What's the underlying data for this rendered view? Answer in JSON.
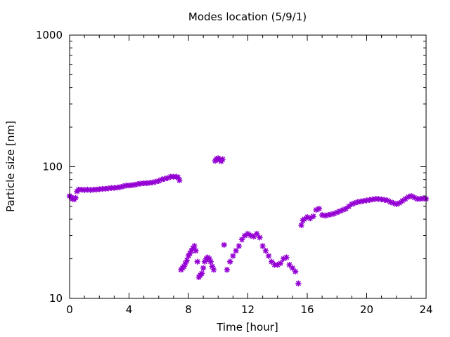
{
  "chart_data": {
    "type": "scatter",
    "title": "Modes location (5/9/1)",
    "xlabel": "Time [hour]",
    "ylabel": "Particle size [nm]",
    "xlim": [
      0,
      24
    ],
    "ylim": [
      10,
      1000
    ],
    "yscale": "log",
    "x_ticks": [
      0,
      4,
      8,
      12,
      16,
      20,
      24
    ],
    "x_tick_labels": [
      "0",
      "4",
      "8",
      "12",
      "16",
      "20",
      "24"
    ],
    "y_ticks": [
      10,
      100,
      1000
    ],
    "y_tick_labels": [
      "10",
      "100",
      "1000"
    ],
    "grid": false,
    "legend": "none",
    "marker_color": "#9400d3",
    "series": [
      {
        "points": [
          [
            0.0,
            60
          ],
          [
            0.1,
            58.5
          ],
          [
            0.2,
            57
          ],
          [
            0.3,
            56.5
          ],
          [
            0.4,
            58
          ],
          [
            0.5,
            65
          ],
          [
            0.6,
            67
          ],
          [
            0.8,
            67
          ],
          [
            1.0,
            66.5
          ],
          [
            1.2,
            67
          ],
          [
            1.4,
            66.5
          ],
          [
            1.6,
            67
          ],
          [
            1.8,
            67
          ],
          [
            2.0,
            67.5
          ],
          [
            2.2,
            68
          ],
          [
            2.4,
            68
          ],
          [
            2.6,
            68.5
          ],
          [
            2.8,
            69
          ],
          [
            3.0,
            69
          ],
          [
            3.2,
            69.5
          ],
          [
            3.4,
            70
          ],
          [
            3.6,
            71
          ],
          [
            3.8,
            72
          ],
          [
            4.0,
            72
          ],
          [
            4.2,
            72.5
          ],
          [
            4.4,
            73
          ],
          [
            4.6,
            74
          ],
          [
            4.8,
            74.5
          ],
          [
            5.0,
            75
          ],
          [
            5.2,
            75
          ],
          [
            5.4,
            75.5
          ],
          [
            5.6,
            76
          ],
          [
            5.8,
            77
          ],
          [
            6.0,
            78
          ],
          [
            6.2,
            80
          ],
          [
            6.4,
            81
          ],
          [
            6.6,
            82
          ],
          [
            6.8,
            84
          ],
          [
            7.0,
            84
          ],
          [
            7.2,
            84
          ],
          [
            7.3,
            83
          ],
          [
            7.4,
            79
          ],
          [
            7.5,
            16.5
          ],
          [
            7.6,
            17
          ],
          [
            7.7,
            17.5
          ],
          [
            7.8,
            18.5
          ],
          [
            7.9,
            19.5
          ],
          [
            8.0,
            21
          ],
          [
            8.1,
            22
          ],
          [
            8.2,
            23
          ],
          [
            8.3,
            24
          ],
          [
            8.4,
            25
          ],
          [
            8.5,
            23
          ],
          [
            8.6,
            19
          ],
          [
            8.7,
            14.5
          ],
          [
            8.8,
            15
          ],
          [
            8.9,
            15.5
          ],
          [
            9.0,
            17
          ],
          [
            9.1,
            19
          ],
          [
            9.2,
            20
          ],
          [
            9.3,
            20.5
          ],
          [
            9.4,
            20
          ],
          [
            9.5,
            19
          ],
          [
            9.6,
            17.5
          ],
          [
            9.7,
            16.5
          ],
          [
            9.8,
            111
          ],
          [
            9.9,
            115
          ],
          [
            10.0,
            116
          ],
          [
            10.1,
            113
          ],
          [
            10.2,
            110
          ],
          [
            10.3,
            114
          ],
          [
            10.4,
            25.5
          ],
          [
            10.6,
            16.5
          ],
          [
            10.8,
            19
          ],
          [
            11.0,
            21
          ],
          [
            11.2,
            23
          ],
          [
            11.4,
            25
          ],
          [
            11.6,
            28
          ],
          [
            11.8,
            30
          ],
          [
            12.0,
            31
          ],
          [
            12.2,
            30
          ],
          [
            12.4,
            29.5
          ],
          [
            12.6,
            31
          ],
          [
            12.8,
            29
          ],
          [
            13.0,
            25
          ],
          [
            13.2,
            23
          ],
          [
            13.4,
            21
          ],
          [
            13.6,
            19
          ],
          [
            13.8,
            18
          ],
          [
            14.0,
            18
          ],
          [
            14.2,
            18.5
          ],
          [
            14.4,
            20
          ],
          [
            14.6,
            20.5
          ],
          [
            14.8,
            18
          ],
          [
            15.0,
            17
          ],
          [
            15.2,
            16
          ],
          [
            15.4,
            13
          ],
          [
            15.6,
            36
          ],
          [
            15.7,
            39
          ],
          [
            15.8,
            40
          ],
          [
            16.0,
            41.5
          ],
          [
            16.2,
            40.5
          ],
          [
            16.4,
            42
          ],
          [
            16.6,
            47
          ],
          [
            16.8,
            48
          ],
          [
            17.0,
            43
          ],
          [
            17.2,
            42.5
          ],
          [
            17.4,
            43
          ],
          [
            17.6,
            43.5
          ],
          [
            17.8,
            44
          ],
          [
            18.0,
            45
          ],
          [
            18.2,
            46
          ],
          [
            18.4,
            47
          ],
          [
            18.6,
            48
          ],
          [
            18.8,
            50
          ],
          [
            19.0,
            52
          ],
          [
            19.2,
            53
          ],
          [
            19.4,
            54
          ],
          [
            19.6,
            54.5
          ],
          [
            19.8,
            55
          ],
          [
            20.0,
            55.5
          ],
          [
            20.2,
            56
          ],
          [
            20.4,
            56.5
          ],
          [
            20.6,
            57
          ],
          [
            20.8,
            57
          ],
          [
            21.0,
            56.5
          ],
          [
            21.2,
            56
          ],
          [
            21.4,
            55.5
          ],
          [
            21.6,
            54
          ],
          [
            21.8,
            53
          ],
          [
            22.0,
            52
          ],
          [
            22.2,
            53
          ],
          [
            22.4,
            55
          ],
          [
            22.6,
            57
          ],
          [
            22.8,
            59
          ],
          [
            23.0,
            60
          ],
          [
            23.2,
            58.5
          ],
          [
            23.4,
            57
          ],
          [
            23.6,
            57
          ],
          [
            23.8,
            57.5
          ],
          [
            24.0,
            57
          ]
        ]
      }
    ]
  }
}
